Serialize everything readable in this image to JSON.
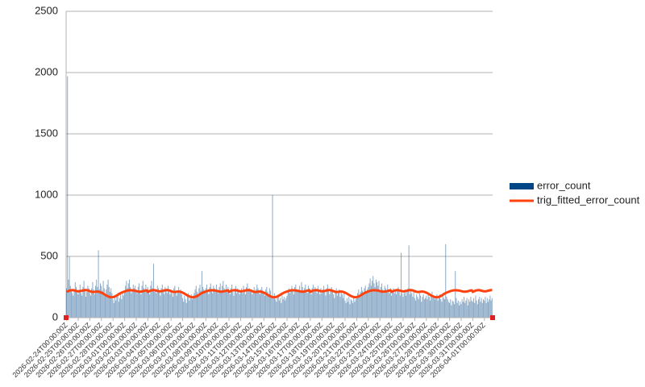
{
  "chart_data": {
    "type": "bar",
    "categories": [
      "2026-02-24T00:00:00Z",
      null,
      null,
      null,
      null,
      null,
      null,
      null,
      null,
      null,
      null,
      null,
      "2026-02-25T00:00:00Z",
      null,
      null,
      null,
      null,
      null,
      null,
      null,
      null,
      null,
      null,
      null,
      "2026-02-26T00:00:00Z",
      null,
      null,
      null,
      null,
      null,
      null,
      null,
      null,
      null,
      null,
      null,
      "2026-02-27T00:00:00Z",
      null,
      null,
      null,
      null,
      null,
      null,
      null,
      null,
      null,
      null,
      null,
      "2026-02-28T00:00:00Z",
      null,
      null,
      null,
      null,
      null,
      null,
      null,
      null,
      null,
      null,
      null,
      "2026-03-01T00:00:00Z",
      null,
      null,
      null,
      null,
      null,
      null,
      null,
      null,
      null,
      null,
      null,
      "2026-03-02T00:00:00Z",
      null,
      null,
      null,
      null,
      null,
      null,
      null,
      null,
      null,
      null,
      null,
      "2026-03-03T00:00:00Z",
      null,
      null,
      null,
      null,
      null,
      null,
      null,
      null,
      null,
      null,
      null,
      "2026-03-04T00:00:00Z",
      null,
      null,
      null,
      null,
      null,
      null,
      null,
      null,
      null,
      null,
      null,
      "2026-03-05T00:00:00Z",
      null,
      null,
      null,
      null,
      null,
      null,
      null,
      null,
      null,
      null,
      null,
      "2026-03-06T00:00:00Z",
      null,
      null,
      null,
      null,
      null,
      null,
      null,
      null,
      null,
      null,
      null,
      "2026-03-07T00:00:00Z",
      null,
      null,
      null,
      null,
      null,
      null,
      null,
      null,
      null,
      null,
      null,
      "2026-03-08T00:00:00Z",
      null,
      null,
      null,
      null,
      null,
      null,
      null,
      null,
      null,
      null,
      null,
      "2026-03-09T00:00:00Z",
      null,
      null,
      null,
      null,
      null,
      null,
      null,
      null,
      null,
      null,
      null,
      "2026-03-10T00:00:00Z",
      null,
      null,
      null,
      null,
      null,
      null,
      null,
      null,
      null,
      null,
      null,
      "2026-03-11T00:00:00Z",
      null,
      null,
      null,
      null,
      null,
      null,
      null,
      null,
      null,
      null,
      null,
      "2026-03-12T00:00:00Z",
      null,
      null,
      null,
      null,
      null,
      null,
      null,
      null,
      null,
      null,
      null,
      "2026-03-13T00:00:00Z",
      null,
      null,
      null,
      null,
      null,
      null,
      null,
      null,
      null,
      null,
      null,
      "2026-03-14T00:00:00Z",
      null,
      null,
      null,
      null,
      null,
      null,
      null,
      null,
      null,
      null,
      null,
      "2026-03-15T00:00:00Z",
      null,
      null,
      null,
      null,
      null,
      null,
      null,
      null,
      null,
      null,
      null,
      "2026-03-16T00:00:00Z",
      null,
      null,
      null,
      null,
      null,
      null,
      null,
      null,
      null,
      null,
      null,
      "2026-03-17T00:00:00Z",
      null,
      null,
      null,
      null,
      null,
      null,
      null,
      null,
      null,
      null,
      null,
      "2026-03-18T00:00:00Z",
      null,
      null,
      null,
      null,
      null,
      null,
      null,
      null,
      null,
      null,
      null,
      "2026-03-19T00:00:00Z",
      null,
      null,
      null,
      null,
      null,
      null,
      null,
      null,
      null,
      null,
      null,
      "2026-03-20T00:00:00Z",
      null,
      null,
      null,
      null,
      null,
      null,
      null,
      null,
      null,
      null,
      null,
      "2026-03-21T00:00:00Z",
      null,
      null,
      null,
      null,
      null,
      null,
      null,
      null,
      null,
      null,
      null,
      "2026-03-22T00:00:00Z",
      null,
      null,
      null,
      null,
      null,
      null,
      null,
      null,
      null,
      null,
      null,
      "2026-03-23T00:00:00Z",
      null,
      null,
      null,
      null,
      null,
      null,
      null,
      null,
      null,
      null,
      null,
      "2026-03-24T00:00:00Z",
      null,
      null,
      null,
      null,
      null,
      null,
      null,
      null,
      null,
      null,
      null,
      "2026-03-25T00:00:00Z",
      null,
      null,
      null,
      null,
      null,
      null,
      null,
      null,
      null,
      null,
      null,
      "2026-03-26T00:00:00Z",
      null,
      null,
      null,
      null,
      null,
      null,
      null,
      null,
      null,
      null,
      null,
      "2026-03-27T00:00:00Z",
      null,
      null,
      null,
      null,
      null,
      null,
      null,
      null,
      null,
      null,
      null,
      "2026-03-28T00:00:00Z",
      null,
      null,
      null,
      null,
      null,
      null,
      null,
      null,
      null,
      null,
      null,
      "2026-03-29T00:00:00Z",
      null,
      null,
      null,
      null,
      null,
      null,
      null,
      null,
      null,
      null,
      null,
      "2026-03-30T00:00:00Z",
      null,
      null,
      null,
      null,
      null,
      null,
      null,
      null,
      null,
      null,
      null,
      "2026-03-31T00:00:00Z",
      null,
      null,
      null,
      null,
      null,
      null,
      null,
      null,
      null,
      null,
      null,
      "2026-04-01T00:00:00Z",
      null,
      null,
      null,
      null,
      null,
      null,
      null,
      null
    ],
    "series": [
      {
        "name": "error_count",
        "color": "#004586",
        "type": "bar",
        "values": [
          240,
          1970,
          310,
          500,
          260,
          230,
          200,
          180,
          220,
          290,
          250,
          210,
          190,
          230,
          270,
          200,
          180,
          250,
          300,
          220,
          170,
          210,
          260,
          240,
          200,
          180,
          240,
          290,
          230,
          190,
          260,
          310,
          250,
          550,
          230,
          280,
          260,
          220,
          300,
          240,
          190,
          230,
          270,
          310,
          250,
          210,
          240,
          200,
          150,
          120,
          180,
          140,
          170,
          200,
          130,
          160,
          190,
          150,
          210,
          180,
          220,
          260,
          300,
          240,
          280,
          310,
          250,
          200,
          230,
          270,
          240,
          260,
          230,
          200,
          250,
          280,
          220,
          190,
          260,
          300,
          240,
          210,
          270,
          230,
          250,
          220,
          190,
          260,
          300,
          240,
          440,
          210,
          230,
          200,
          260,
          240,
          210,
          180,
          240,
          270,
          220,
          190,
          250,
          230,
          200,
          260,
          210,
          190,
          230,
          200,
          170,
          240,
          260,
          210,
          180,
          220,
          250,
          200,
          230,
          190,
          160,
          130,
          180,
          150,
          120,
          170,
          200,
          140,
          160,
          190,
          150,
          180,
          200,
          230,
          260,
          210,
          180,
          240,
          270,
          220,
          380,
          250,
          230,
          210,
          240,
          270,
          220,
          190,
          250,
          280,
          230,
          200,
          260,
          240,
          210,
          270,
          230,
          200,
          250,
          280,
          220,
          260,
          300,
          240,
          210,
          270,
          230,
          250,
          220,
          190,
          240,
          270,
          210,
          180,
          230,
          260,
          200,
          240,
          220,
          190,
          210,
          240,
          200,
          260,
          230,
          190,
          250,
          280,
          220,
          240,
          210,
          230,
          190,
          220,
          250,
          200,
          230,
          270,
          240,
          210,
          190,
          230,
          250,
          220,
          200,
          180,
          230,
          250,
          210,
          190,
          240,
          220,
          180,
          1000,
          170,
          200,
          150,
          130,
          170,
          190,
          140,
          160,
          120,
          180,
          150,
          170,
          140,
          160,
          180,
          210,
          240,
          200,
          230,
          260,
          220,
          190,
          250,
          270,
          230,
          210,
          230,
          260,
          220,
          290,
          250,
          210,
          240,
          270,
          230,
          200,
          260,
          240,
          220,
          190,
          240,
          270,
          210,
          250,
          230,
          200,
          260,
          220,
          190,
          240,
          200,
          230,
          260,
          210,
          180,
          240,
          270,
          220,
          190,
          230,
          250,
          210,
          190,
          160,
          210,
          240,
          180,
          200,
          230,
          170,
          210,
          190,
          160,
          200,
          140,
          120,
          160,
          130,
          170,
          110,
          150,
          140,
          120,
          160,
          130,
          150,
          170,
          200,
          230,
          180,
          210,
          250,
          220,
          190,
          240,
          260,
          210,
          230,
          250,
          280,
          320,
          260,
          300,
          340,
          280,
          250,
          310,
          290,
          260,
          300,
          220,
          250,
          280,
          230,
          200,
          260,
          240,
          210,
          270,
          230,
          200,
          240,
          180,
          210,
          240,
          200,
          230,
          190,
          220,
          250,
          210,
          180,
          530,
          200,
          170,
          200,
          230,
          180,
          210,
          240,
          590,
          190,
          220,
          200,
          170,
          210,
          160,
          140,
          190,
          170,
          150,
          200,
          180,
          130,
          170,
          190,
          150,
          160,
          180,
          150,
          200,
          170,
          140,
          190,
          210,
          160,
          180,
          150,
          170,
          190,
          140,
          170,
          190,
          150,
          130,
          180,
          160,
          150,
          600,
          170,
          150,
          130,
          120,
          150,
          100,
          140,
          130,
          110,
          380,
          160,
          120,
          140,
          100,
          130,
          110,
          150,
          130,
          170,
          120,
          140,
          160,
          100,
          150,
          130,
          170,
          140,
          130,
          160,
          120,
          180,
          140,
          110,
          150,
          170,
          130,
          160,
          120,
          150,
          140,
          170,
          120,
          160,
          130,
          150,
          180,
          140,
          160
        ]
      },
      {
        "name": "trig_fitted_error_count",
        "color": "#ff420e",
        "type": "line",
        "values": [
          210,
          214,
          218,
          221,
          223,
          224,
          225,
          224,
          222,
          220,
          218,
          216,
          215,
          215,
          216,
          218,
          220,
          222,
          224,
          225,
          225,
          224,
          222,
          219,
          216,
          213,
          211,
          210,
          210,
          211,
          212,
          213,
          213,
          212,
          210,
          207,
          204,
          200,
          196,
          191,
          186,
          181,
          177,
          173,
          170,
          168,
          167,
          167,
          168,
          170,
          173,
          177,
          182,
          187,
          192,
          197,
          201,
          205,
          208,
          211,
          214,
          217,
          219,
          221,
          223,
          224,
          224,
          224,
          223,
          222,
          221,
          219,
          217,
          215,
          213,
          212,
          212,
          213,
          214,
          216,
          218,
          220,
          222,
          223,
          210,
          214,
          218,
          221,
          223,
          224,
          225,
          224,
          222,
          220,
          218,
          216,
          215,
          215,
          216,
          218,
          220,
          222,
          224,
          225,
          225,
          224,
          222,
          219,
          216,
          213,
          211,
          210,
          210,
          211,
          212,
          213,
          213,
          212,
          210,
          207,
          204,
          200,
          196,
          191,
          186,
          181,
          177,
          173,
          170,
          168,
          167,
          167,
          168,
          170,
          173,
          177,
          182,
          187,
          192,
          197,
          201,
          205,
          208,
          211,
          214,
          217,
          219,
          221,
          223,
          224,
          224,
          224,
          223,
          222,
          221,
          219,
          217,
          215,
          213,
          212,
          212,
          213,
          214,
          216,
          218,
          220,
          222,
          223,
          210,
          214,
          218,
          221,
          223,
          224,
          225,
          224,
          222,
          220,
          218,
          216,
          215,
          215,
          216,
          218,
          220,
          222,
          224,
          225,
          225,
          224,
          222,
          219,
          216,
          213,
          211,
          210,
          210,
          211,
          212,
          213,
          213,
          212,
          210,
          207,
          204,
          200,
          196,
          191,
          186,
          181,
          177,
          173,
          170,
          168,
          167,
          167,
          168,
          170,
          173,
          177,
          182,
          187,
          192,
          197,
          201,
          205,
          208,
          211,
          214,
          217,
          219,
          221,
          223,
          224,
          224,
          224,
          223,
          222,
          221,
          219,
          217,
          215,
          213,
          212,
          212,
          213,
          214,
          216,
          218,
          220,
          222,
          223,
          210,
          214,
          218,
          221,
          223,
          224,
          225,
          224,
          222,
          220,
          218,
          216,
          215,
          215,
          216,
          218,
          220,
          222,
          224,
          225,
          225,
          224,
          222,
          219,
          216,
          213,
          211,
          210,
          210,
          211,
          212,
          213,
          213,
          212,
          210,
          207,
          204,
          200,
          196,
          191,
          186,
          181,
          177,
          173,
          170,
          168,
          167,
          167,
          168,
          170,
          173,
          177,
          182,
          187,
          192,
          197,
          201,
          205,
          208,
          211,
          214,
          217,
          219,
          221,
          223,
          224,
          224,
          224,
          223,
          222,
          221,
          219,
          217,
          215,
          213,
          212,
          212,
          213,
          214,
          216,
          218,
          220,
          222,
          223,
          210,
          214,
          218,
          221,
          223,
          224,
          225,
          224,
          222,
          220,
          218,
          216,
          215,
          215,
          216,
          218,
          220,
          222,
          224,
          225,
          225,
          224,
          222,
          219,
          216,
          213,
          211,
          210,
          210,
          211,
          212,
          213,
          213,
          212,
          210,
          207,
          204,
          200,
          196,
          191,
          186,
          181,
          177,
          173,
          170,
          168,
          167,
          167,
          168,
          170,
          173,
          177,
          182,
          187,
          192,
          197,
          201,
          205,
          208,
          211,
          214,
          217,
          219,
          221,
          223,
          224,
          224,
          224,
          223,
          222,
          221,
          219,
          217,
          215,
          213,
          212,
          212,
          213,
          214,
          216,
          218,
          220,
          222,
          223,
          210,
          214,
          218,
          221,
          223,
          224,
          225,
          224,
          222,
          220,
          218,
          216,
          215,
          215,
          216,
          218,
          220,
          222,
          224,
          225,
          225
        ]
      }
    ],
    "ylim": [
      0,
      2500
    ],
    "yticks": [
      0,
      500,
      1000,
      1500,
      2000,
      2500
    ],
    "grid": true,
    "legend": "right"
  }
}
